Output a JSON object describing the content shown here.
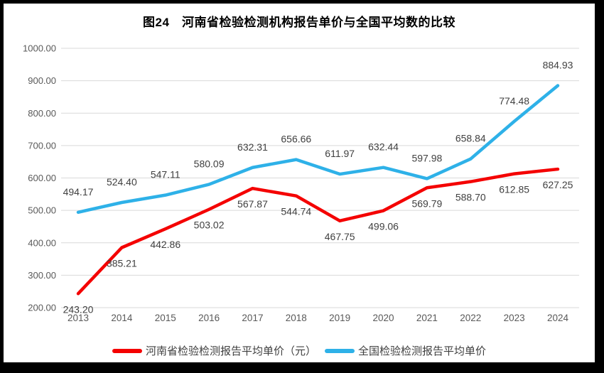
{
  "chart_data": {
    "type": "line",
    "title": "图24　河南省检验检测机构报告单价与全国平均数的比较",
    "categories": [
      "2013",
      "2014",
      "2015",
      "2016",
      "2017",
      "2018",
      "2019",
      "2020",
      "2021",
      "2022",
      "2023",
      "2024"
    ],
    "series": [
      {
        "name": "河南省检验检测报告平均单价（元）",
        "color": "#f40000",
        "label_side": "below",
        "values": [
          243.2,
          385.21,
          442.86,
          503.02,
          567.87,
          544.74,
          467.75,
          499.06,
          569.79,
          588.7,
          612.85,
          627.25
        ]
      },
      {
        "name": "全国检验检测报告平均单价",
        "color": "#2eb1e8",
        "label_side": "above",
        "values": [
          494.17,
          524.4,
          547.11,
          580.09,
          632.31,
          656.66,
          611.97,
          632.44,
          597.98,
          658.84,
          774.48,
          884.93
        ]
      }
    ],
    "ylim": [
      200,
      1000
    ],
    "ytick_step": 100,
    "value_decimals": 2,
    "grid": true,
    "gridline_color": "#d9d9d9",
    "legend_position": "bottom"
  }
}
